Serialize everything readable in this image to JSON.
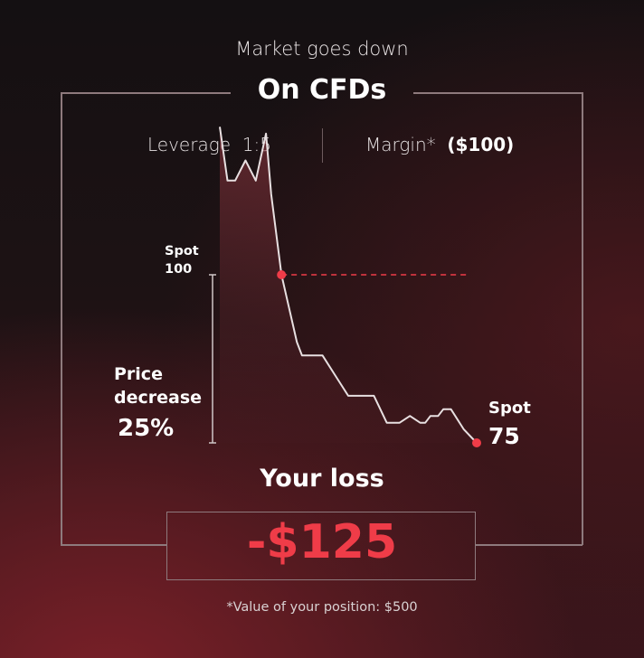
{
  "header": {
    "subtitle": "Market goes down",
    "title": "On CFDs"
  },
  "params": {
    "leverage_label": "Leverage",
    "leverage_value": "1:5",
    "margin_label": "Margin*",
    "margin_value": "($100)"
  },
  "labels": {
    "spot_start": [
      "Spot",
      "100"
    ],
    "spot_end": [
      "Spot",
      "75"
    ],
    "price_change": [
      "Price",
      "decrease",
      "25%"
    ]
  },
  "result": {
    "label": "Your loss",
    "value": "-$125"
  },
  "footnote": "*Value of your position: $500",
  "colors": {
    "accent": "#ef3c48",
    "line": "#e8e0e1",
    "frame": "#8e7a7d"
  },
  "chart_data": {
    "type": "area",
    "x": [
      0,
      3,
      6,
      10,
      14,
      18,
      20,
      24,
      27,
      30,
      32,
      36,
      40,
      45,
      50,
      55,
      60,
      65,
      70,
      74,
      78,
      80,
      82,
      85,
      87,
      90,
      95,
      100
    ],
    "values": [
      122,
      114,
      114,
      117,
      114,
      121,
      112,
      100,
      95,
      90,
      88,
      88,
      88,
      85,
      82,
      82,
      82,
      78,
      78,
      79,
      78,
      78,
      79,
      79,
      80,
      80,
      77,
      75
    ],
    "ylim": [
      70,
      125
    ],
    "start": {
      "x": 24,
      "y": 100
    },
    "end": {
      "x": 100,
      "y": 75
    },
    "reference_line": 100
  }
}
